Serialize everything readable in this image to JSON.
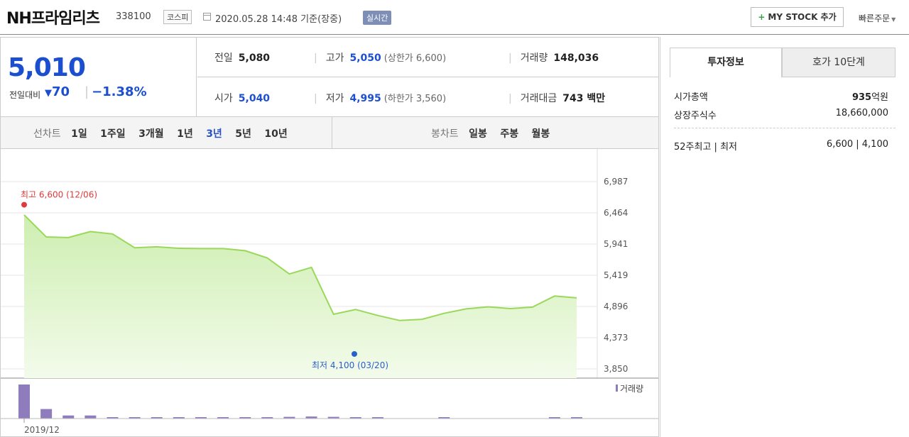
{
  "header": {
    "stock_name": "NH프라임리츠",
    "stock_code": "338100",
    "market": "코스피",
    "datetime": "2020.05.28 14:48 기준(장중)",
    "realtime_badge": "실시간",
    "mystock_button": "MY STOCK 추가",
    "mystock_plus": "+",
    "quick_order": "빠른주문"
  },
  "quote": {
    "price": "5,010",
    "change_label": "전일대비",
    "change_arrow": "▼",
    "change_value": "70",
    "change_percent": "−1.38%",
    "prev_close_label": "전일",
    "prev_close": "5,080",
    "high_label": "고가",
    "high": "5,050",
    "upper_limit": "(상한가 6,600)",
    "volume_label": "거래량",
    "volume": "148,036",
    "open_label": "시가",
    "open": "5,040",
    "low_label": "저가",
    "low": "4,995",
    "lower_limit": "(하한가 3,560)",
    "amount_label": "거래대금",
    "amount": "743 백만"
  },
  "periods": {
    "line_label": "선차트",
    "line_options": [
      "1일",
      "1주일",
      "3개월",
      "1년",
      "3년",
      "5년",
      "10년"
    ],
    "line_active": "3년",
    "candle_label": "봉차트",
    "candle_options": [
      "일봉",
      "주봉",
      "월봉"
    ]
  },
  "chart_data": {
    "type": "area",
    "y_ticks": [
      "6,987",
      "6,464",
      "5,941",
      "5,419",
      "4,896",
      "4,373",
      "3,850"
    ],
    "ylim": [
      3850,
      6987
    ],
    "x_label": "2019/12",
    "high_annotation": "최고 6,600 (12/06)",
    "low_annotation": "최저 4,100 (03/20)",
    "high_point": {
      "value": 6600
    },
    "low_point": {
      "value": 4100
    },
    "price_values": [
      6430,
      6060,
      6050,
      6150,
      6110,
      5880,
      5895,
      5870,
      5865,
      5865,
      5830,
      5710,
      5440,
      5550,
      4765,
      4845,
      4745,
      4660,
      4680,
      4780,
      4855,
      4890,
      4860,
      4885,
      5070,
      5040
    ],
    "volume_legend": "거래량",
    "volume_values": [
      100,
      28,
      9,
      9,
      3,
      4,
      4,
      3,
      3,
      3,
      3,
      3,
      5,
      6,
      5,
      4,
      3,
      0,
      0,
      2,
      0,
      0,
      0,
      0,
      2,
      2
    ],
    "colors": {
      "line": "#9ad85a",
      "fill_top": "#cdeeb0",
      "fill_bottom": "#f3fbeb",
      "volume": "#8f7cbc",
      "high": "#e03a3a",
      "low": "#2b5fc9"
    }
  },
  "invest_info": {
    "tab_active": "투자정보",
    "tab_other": "호가 10단계",
    "market_cap_label": "시가총액",
    "market_cap_value": "935",
    "market_cap_unit": "억원",
    "shares_label": "상장주식수",
    "shares_value": "18,660,000",
    "week52_label": "52주최고 | 최저",
    "week52_value": "6,600 | 4,100"
  }
}
